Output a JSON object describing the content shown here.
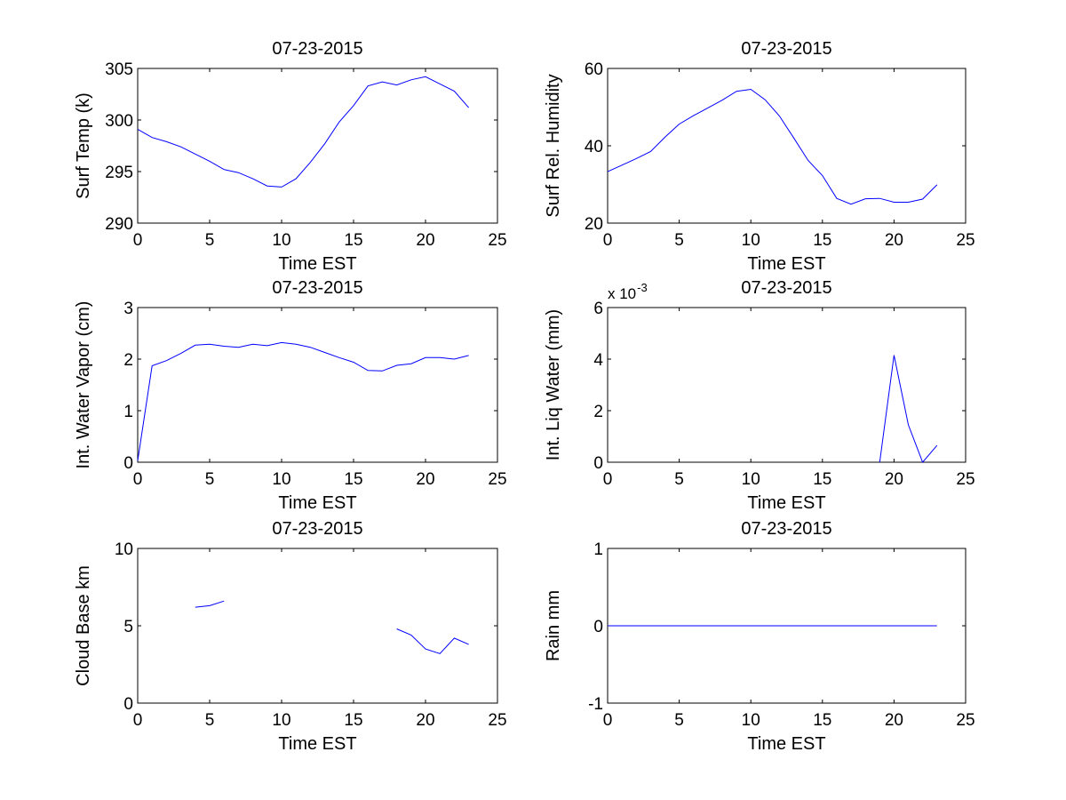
{
  "figure": {
    "line_color": "#0000ff",
    "background": "#ffffff"
  },
  "chart_data": [
    {
      "type": "line",
      "title": "07-23-2015",
      "xlabel": "Time EST",
      "ylabel": "Surf Temp (k)",
      "xlim": [
        0,
        25
      ],
      "ylim": [
        290,
        305
      ],
      "xticks": [
        0,
        5,
        10,
        15,
        20,
        25
      ],
      "xtick_labels": [
        "0",
        "5",
        "10",
        "15",
        "20",
        "25"
      ],
      "yticks": [
        290,
        295,
        300,
        305
      ],
      "ytick_labels": [
        "290",
        "295",
        "300",
        "305"
      ],
      "series": [
        {
          "name": "Surf Temp",
          "segments": [
            {
              "x": [
                0,
                1,
                2,
                3,
                4,
                5,
                6,
                7,
                8,
                9,
                10,
                11,
                12,
                13,
                14,
                15,
                16,
                17,
                18,
                19,
                20,
                21,
                22,
                23
              ],
              "y": [
                299.1,
                298.3,
                297.9,
                297.4,
                296.7,
                296.0,
                295.2,
                294.9,
                294.3,
                293.6,
                293.5,
                294.3,
                295.9,
                297.7,
                299.8,
                301.4,
                303.3,
                303.7,
                303.4,
                303.9,
                304.2,
                303.5,
                302.8,
                301.2
              ]
            }
          ]
        }
      ]
    },
    {
      "type": "line",
      "title": "07-23-2015",
      "xlabel": "Time EST",
      "ylabel": "Surf Rel. Humidity",
      "xlim": [
        0,
        25
      ],
      "ylim": [
        20,
        60
      ],
      "xticks": [
        0,
        5,
        10,
        15,
        20,
        25
      ],
      "xtick_labels": [
        "0",
        "5",
        "10",
        "15",
        "20",
        "25"
      ],
      "yticks": [
        20,
        40,
        60
      ],
      "ytick_labels": [
        "20",
        "40",
        "60"
      ],
      "series": [
        {
          "name": "Surf Rel. Humidity",
          "segments": [
            {
              "x": [
                0,
                1,
                2,
                3,
                4,
                5,
                6,
                7,
                8,
                9,
                10,
                11,
                12,
                13,
                14,
                15,
                16,
                17,
                18,
                19,
                20,
                21,
                22,
                23
              ],
              "y": [
                33.3,
                35.0,
                36.7,
                38.5,
                42.2,
                45.6,
                47.8,
                49.8,
                51.8,
                54.1,
                54.6,
                51.9,
                47.7,
                42.0,
                36.2,
                32.3,
                26.4,
                24.9,
                26.3,
                26.4,
                25.4,
                25.4,
                26.2,
                29.9
              ]
            }
          ]
        }
      ]
    },
    {
      "type": "line",
      "title": "07-23-2015",
      "xlabel": "Time EST",
      "ylabel": "Int. Water Vapor (cm)",
      "xlim": [
        0,
        25
      ],
      "ylim": [
        0,
        3
      ],
      "xticks": [
        0,
        5,
        10,
        15,
        20,
        25
      ],
      "xtick_labels": [
        "0",
        "5",
        "10",
        "15",
        "20",
        "25"
      ],
      "yticks": [
        0,
        1,
        2,
        3
      ],
      "ytick_labels": [
        "0",
        "1",
        "2",
        "3"
      ],
      "series": [
        {
          "name": "Int. Water Vapor",
          "segments": [
            {
              "x": [
                0,
                1,
                2,
                3,
                4,
                5,
                6,
                7,
                8,
                9,
                10,
                11,
                12,
                13,
                14,
                15,
                16,
                17,
                18,
                19,
                20,
                21,
                22,
                23
              ],
              "y": [
                0.03,
                1.87,
                1.97,
                2.11,
                2.27,
                2.29,
                2.25,
                2.23,
                2.29,
                2.26,
                2.32,
                2.29,
                2.23,
                2.13,
                2.03,
                1.94,
                1.78,
                1.77,
                1.88,
                1.91,
                2.03,
                2.03,
                2.0,
                2.07
              ]
            }
          ]
        }
      ]
    },
    {
      "type": "line",
      "title": "07-23-2015",
      "xlabel": "Time EST",
      "ylabel": "Int. Liq Water (mm)",
      "exponent_label": "x 10",
      "exponent_power": "-3",
      "xlim": [
        0,
        25
      ],
      "ylim": [
        0,
        6
      ],
      "xticks": [
        0,
        5,
        10,
        15,
        20,
        25
      ],
      "xtick_labels": [
        "0",
        "5",
        "10",
        "15",
        "20",
        "25"
      ],
      "yticks": [
        0,
        2,
        4,
        6
      ],
      "ytick_labels": [
        "0",
        "2",
        "4",
        "6"
      ],
      "series": [
        {
          "name": "Int. Liq Water (x 10^-3)",
          "segments": [
            {
              "x": [
                19,
                20,
                21,
                22,
                23
              ],
              "y": [
                0,
                4.15,
                1.45,
                0,
                0.65
              ]
            }
          ]
        }
      ]
    },
    {
      "type": "line",
      "title": "07-23-2015",
      "xlabel": "Time EST",
      "ylabel": "Cloud Base km",
      "xlim": [
        0,
        25
      ],
      "ylim": [
        0,
        10
      ],
      "xticks": [
        0,
        5,
        10,
        15,
        20,
        25
      ],
      "xtick_labels": [
        "0",
        "5",
        "10",
        "15",
        "20",
        "25"
      ],
      "yticks": [
        0,
        5,
        10
      ],
      "ytick_labels": [
        "0",
        "5",
        "10"
      ],
      "series": [
        {
          "name": "Cloud Base",
          "segments": [
            {
              "x": [
                4,
                5,
                6
              ],
              "y": [
                6.2,
                6.3,
                6.6
              ]
            },
            {
              "x": [
                18,
                19,
                20,
                21,
                22,
                23
              ],
              "y": [
                4.8,
                4.4,
                3.5,
                3.2,
                4.2,
                3.8
              ]
            }
          ]
        }
      ]
    },
    {
      "type": "line",
      "title": "07-23-2015",
      "xlabel": "Time EST",
      "ylabel": "Rain mm",
      "xlim": [
        0,
        25
      ],
      "ylim": [
        -1,
        1
      ],
      "xticks": [
        0,
        5,
        10,
        15,
        20,
        25
      ],
      "xtick_labels": [
        "0",
        "5",
        "10",
        "15",
        "20",
        "25"
      ],
      "yticks": [
        -1,
        0,
        1
      ],
      "ytick_labels": [
        "-1",
        "0",
        "1"
      ],
      "series": [
        {
          "name": "Rain",
          "segments": [
            {
              "x": [
                0,
                23
              ],
              "y": [
                0,
                0
              ]
            }
          ]
        }
      ]
    }
  ]
}
